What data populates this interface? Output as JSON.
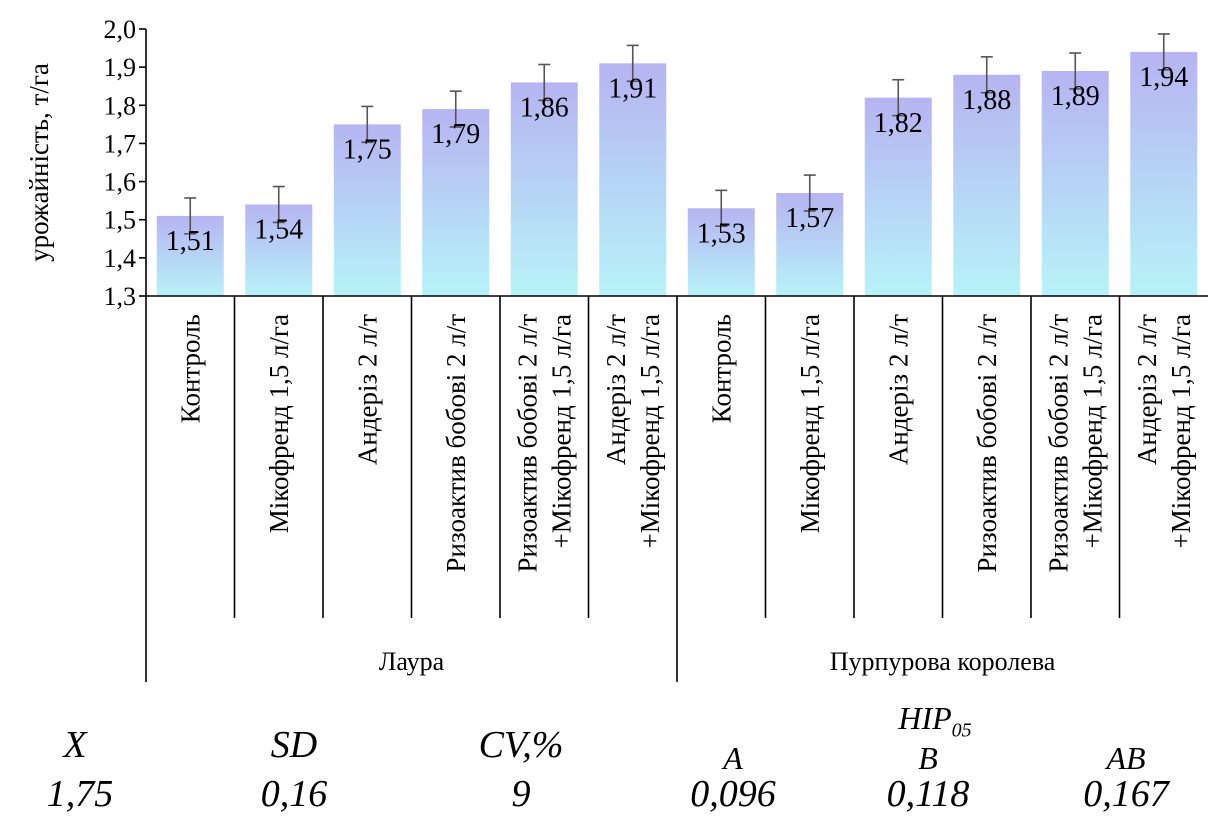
{
  "chart_data": {
    "type": "bar",
    "ylabel": "урожайність, т/га",
    "ylim": [
      1.3,
      2.0
    ],
    "yticks": [
      "1,3",
      "1,4",
      "1,5",
      "1,6",
      "1,7",
      "1,8",
      "1,9",
      "2,0"
    ],
    "groups": [
      "Лаура",
      "Пурпурова королева"
    ],
    "categories": [
      [
        "Контроль"
      ],
      [
        "Мікофренд 1,5 л/га"
      ],
      [
        "Андеріз 2 л/т"
      ],
      [
        "Ризоактив бобові 2 л/т"
      ],
      [
        "Ризоактив бобові 2 л/т",
        "+Мікофренд 1,5 л/га"
      ],
      [
        "Андеріз 2 л/т",
        "+Мікофренд 1,5 л/га"
      ],
      [
        "Контроль"
      ],
      [
        "Мікофренд 1,5 л/га"
      ],
      [
        "Андеріз 2 л/т"
      ],
      [
        "Ризоактив бобові 2 л/т"
      ],
      [
        "Ризоактив бобові 2 л/т",
        "+Мікофренд 1,5 л/га"
      ],
      [
        "Андеріз 2 л/т",
        "+Мікофренд 1,5 л/га"
      ]
    ],
    "values": [
      1.51,
      1.54,
      1.75,
      1.79,
      1.86,
      1.91,
      1.53,
      1.57,
      1.82,
      1.88,
      1.89,
      1.94
    ],
    "value_labels": [
      "1,51",
      "1,54",
      "1,75",
      "1,79",
      "1,86",
      "1,91",
      "1,53",
      "1,57",
      "1,82",
      "1,88",
      "1,89",
      "1,94"
    ],
    "error": 0.047,
    "colors": {
      "bar_top": "#b6b4f2",
      "bar_bottom": "#b6f3f8",
      "error_bar": "#555555"
    }
  },
  "stats": {
    "x_label": "X",
    "x_value": "1,75",
    "sd_label": "SD",
    "sd_value": "0,16",
    "cv_label": "CV,%",
    "cv_value": "9",
    "hip_label": "HIP",
    "hip_sub": "05",
    "a_label": "A",
    "a_value": "0,096",
    "b_label": "B",
    "b_value": "0,118",
    "ab_label": "AB",
    "ab_value": "0,167"
  }
}
